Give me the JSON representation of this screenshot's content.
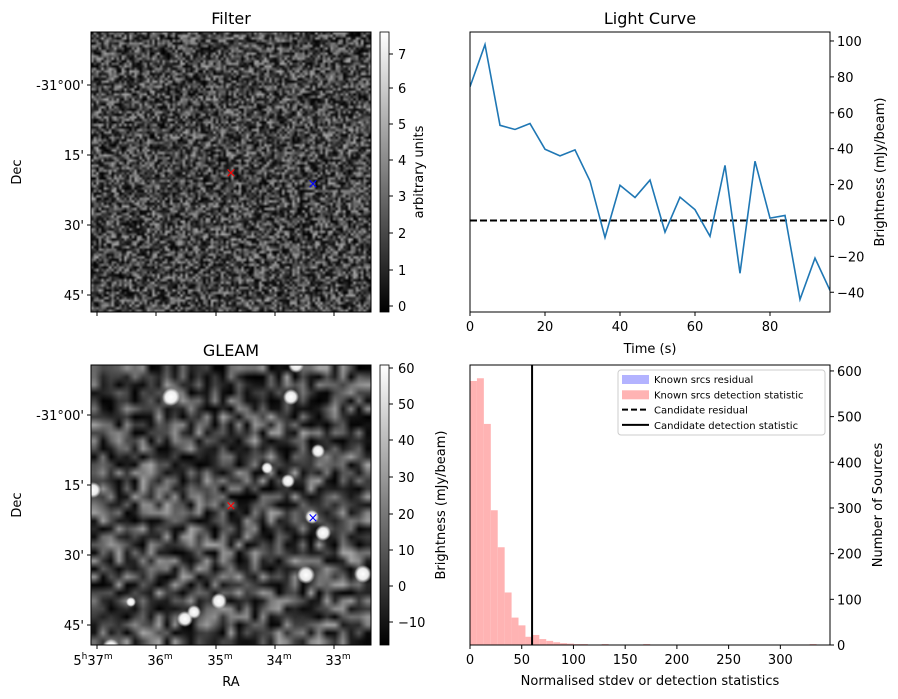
{
  "panels": {
    "filter": {
      "title": "Filter",
      "ylabel": "Dec",
      "colorbar_label": "arbitrary units",
      "colorbar_ticks": [
        "0",
        "1",
        "2",
        "3",
        "4",
        "5",
        "6",
        "7"
      ],
      "colorbar_range": [
        -0.2,
        7.5
      ],
      "dec_ticks": [
        "-31°00'",
        "15'",
        "30'",
        "45'"
      ]
    },
    "gleam": {
      "title": "GLEAM",
      "ylabel": "Dec",
      "xlabel": "RA",
      "colorbar_label": "",
      "colorbar_ticks": [
        "60",
        "50",
        "40",
        "30",
        "20",
        "10",
        "0",
        "−10"
      ],
      "colorbar_range": [
        -16,
        61
      ],
      "dec_ticks": [
        "-31°00'",
        "15'",
        "30'",
        "45'"
      ],
      "ra_ticks": [
        {
          "h": "5",
          "hs": "h",
          "m": "37",
          "ms": "m"
        },
        {
          "m": "36",
          "ms": "m"
        },
        {
          "m": "35",
          "ms": "m"
        },
        {
          "m": "34",
          "ms": "m"
        },
        {
          "m": "33",
          "ms": "m"
        }
      ]
    },
    "markers": {
      "candidate_color": "#ff0000",
      "comparison_color": "#0000ff",
      "symbol": "×"
    }
  },
  "chart_data": [
    {
      "type": "line",
      "title": "Light Curve",
      "xlabel": "Time (s)",
      "ylabel": "Brightness (mJy/beam)",
      "xlim": [
        0,
        96
      ],
      "ylim": [
        -51,
        105
      ],
      "xticks": [
        0,
        20,
        40,
        60,
        80
      ],
      "yticks": [
        100,
        80,
        60,
        40,
        20,
        0,
        -20,
        -40
      ],
      "color": "#1f77b4",
      "x": [
        0,
        4,
        8,
        12,
        16,
        20,
        24,
        28,
        32,
        36,
        40,
        44,
        48,
        52,
        56,
        60,
        64,
        68,
        72,
        76,
        80,
        84,
        88,
        92,
        96
      ],
      "y": [
        74.5,
        98,
        53,
        50.7,
        54,
        39.7,
        36,
        39.3,
        22,
        -9.5,
        19.6,
        12.8,
        22.5,
        -6.5,
        13,
        6,
        -8.8,
        30.7,
        -29.4,
        33,
        1.3,
        2.8,
        -44,
        -21,
        -39
      ],
      "hline": {
        "y": 0,
        "style": "dashed",
        "color": "#000000"
      }
    },
    {
      "type": "bar",
      "subtype": "histogram",
      "xlabel": "Normalised stdev or detection statistics",
      "ylabel_left": "Brightness (mJy/beam)",
      "ylabel_right": "Number of Sources",
      "xlim": [
        0,
        348
      ],
      "ylim": [
        0,
        613
      ],
      "xticks": [
        0,
        50,
        100,
        150,
        200,
        250,
        300
      ],
      "yticks": [
        0,
        100,
        200,
        300,
        400,
        500,
        600
      ],
      "bin_start": 0,
      "bin_width": 6.7,
      "counts": [
        578,
        584,
        484,
        295,
        214,
        115,
        60,
        43,
        18,
        22,
        13,
        9,
        6,
        4,
        3,
        2,
        2,
        1,
        1,
        2,
        1,
        0,
        0,
        0,
        0,
        2,
        0,
        0,
        0,
        1,
        0,
        0,
        0,
        0,
        0,
        0,
        0,
        0,
        0,
        0,
        0,
        0,
        0,
        0,
        0,
        0,
        0,
        0,
        0,
        2
      ],
      "bar_color": "#ffb3b3",
      "vline": {
        "x": 60,
        "label": "Candidate detection statistic"
      },
      "legend": {
        "placement": "top-right",
        "entries": [
          {
            "label": "Known srcs residual",
            "kind": "patch",
            "color": "#b3b3ff"
          },
          {
            "label": "Known srcs detection statistic",
            "kind": "patch",
            "color": "#ffb3b3"
          },
          {
            "label": "Candidate residual",
            "kind": "dashed"
          },
          {
            "label": "Candidate detection statistic",
            "kind": "solid"
          }
        ]
      }
    }
  ]
}
